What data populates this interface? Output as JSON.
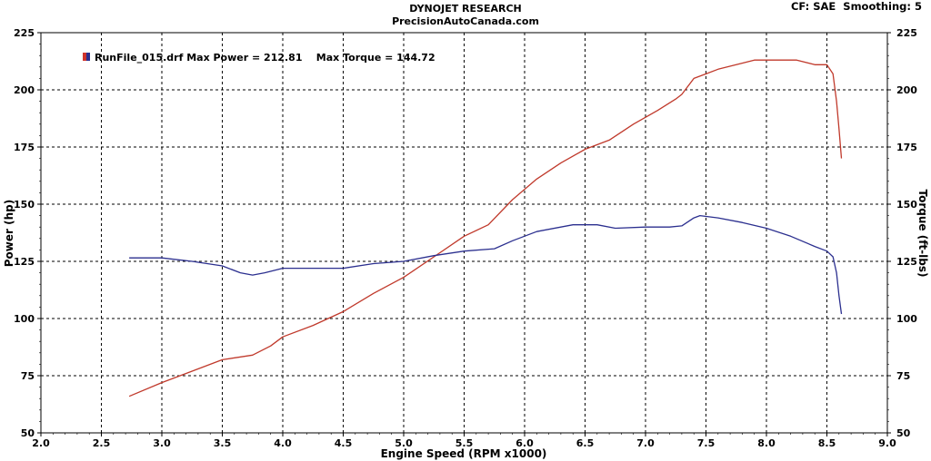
{
  "header": {
    "title": "DYNOJET RESEARCH",
    "subtitle": "PrecisionAutoCanada.com",
    "cf_label": "CF: SAE",
    "smoothing_label": "Smoothing: 5"
  },
  "chart_data": {
    "type": "line",
    "xlabel": "Engine Speed (RPM x1000)",
    "ylabel_left": "Power (hp)",
    "ylabel_right": "Torque (ft-lbs)",
    "xlim": [
      2.0,
      9.0
    ],
    "ylim": [
      50,
      225
    ],
    "x_ticks": [
      "2.0",
      "2.5",
      "3.0",
      "3.5",
      "4.0",
      "4.5",
      "5.0",
      "5.5",
      "6.0",
      "6.5",
      "7.0",
      "7.5",
      "8.0",
      "8.5",
      "9.0"
    ],
    "y_ticks": [
      "50",
      "75",
      "100",
      "125",
      "150",
      "175",
      "200",
      "225"
    ],
    "grid": true,
    "legend": {
      "text": "RunFile_015.drf Max Power = 212.81    Max Torque = 144.72",
      "placement": "top-left"
    },
    "series": [
      {
        "name": "Power",
        "color": "#c0392b",
        "x": [
          2.73,
          3.0,
          3.25,
          3.5,
          3.75,
          3.9,
          4.0,
          4.25,
          4.5,
          4.75,
          5.0,
          5.25,
          5.5,
          5.7,
          5.9,
          6.1,
          6.3,
          6.5,
          6.7,
          6.9,
          7.1,
          7.25,
          7.3,
          7.4,
          7.5,
          7.6,
          7.75,
          7.9,
          8.0,
          8.25,
          8.4,
          8.5,
          8.55,
          8.58,
          8.6,
          8.62
        ],
        "values": [
          66,
          72,
          77,
          82,
          84,
          88,
          92,
          97,
          103,
          111,
          118,
          127,
          136,
          141,
          152,
          161,
          168,
          174,
          178,
          185,
          191,
          196,
          198,
          205,
          207,
          209,
          211,
          213,
          213,
          213,
          211,
          211,
          207,
          195,
          183,
          170
        ]
      },
      {
        "name": "Torque",
        "color": "#2b2f8f",
        "x": [
          2.73,
          3.0,
          3.25,
          3.5,
          3.65,
          3.75,
          3.85,
          4.0,
          4.25,
          4.5,
          4.75,
          5.0,
          5.25,
          5.5,
          5.75,
          5.9,
          6.1,
          6.4,
          6.6,
          6.75,
          7.0,
          7.2,
          7.3,
          7.4,
          7.45,
          7.6,
          7.8,
          8.0,
          8.2,
          8.4,
          8.5,
          8.55,
          8.58,
          8.6,
          8.62
        ],
        "values": [
          126.5,
          126.5,
          125,
          123,
          120,
          119,
          120,
          122,
          122,
          122,
          124,
          125,
          127.5,
          129.5,
          130.5,
          134,
          138,
          141,
          141,
          139.5,
          140,
          140,
          140.5,
          144,
          145,
          144,
          142,
          139.5,
          136,
          131.5,
          129.5,
          127,
          120,
          110,
          102
        ]
      }
    ]
  }
}
